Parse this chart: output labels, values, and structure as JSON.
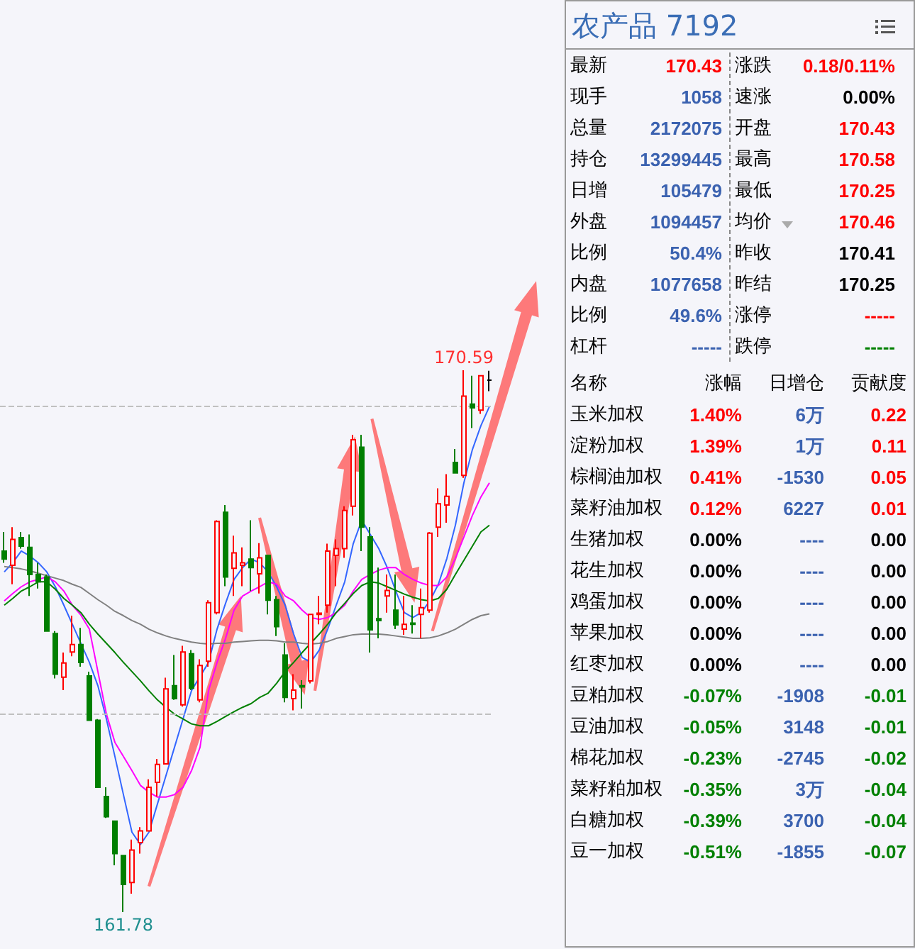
{
  "chart_data": [
    {
      "type": "candlestick",
      "categories": [
        null,
        null,
        null,
        null,
        null,
        null,
        null,
        null,
        null,
        null,
        null,
        null,
        null,
        null,
        null,
        null,
        null,
        null,
        null,
        null,
        null,
        null,
        null,
        null,
        null,
        null,
        null,
        null,
        null,
        null,
        null,
        null,
        null,
        null,
        null,
        null,
        null,
        null,
        null,
        null,
        null,
        null,
        null,
        null,
        null,
        null,
        null,
        null,
        null,
        null,
        null,
        null,
        null,
        null,
        null,
        null,
        null,
        null
      ],
      "ohlc": [
        [
          167.65,
          167.96,
          167.46,
          167.52
        ],
        [
          167.42,
          168.04,
          167.11,
          167.84
        ],
        [
          167.87,
          167.96,
          167.69,
          167.73
        ],
        [
          167.71,
          167.92,
          166.92,
          167.27
        ],
        [
          167.27,
          167.46,
          167.04,
          167.15
        ],
        [
          167.23,
          167.27,
          166.35,
          166.35
        ],
        [
          166.31,
          166.35,
          165.58,
          165.65
        ],
        [
          165.6,
          166.0,
          165.39,
          165.83
        ],
        [
          166.01,
          166.6,
          165.94,
          166.13
        ],
        [
          166.13,
          166.4,
          165.77,
          165.84
        ],
        [
          165.62,
          165.69,
          164.9,
          164.9
        ],
        [
          164.9,
          164.92,
          163.81,
          163.81
        ],
        [
          163.66,
          163.81,
          163.31,
          163.33
        ],
        [
          163.26,
          163.26,
          162.54,
          162.73
        ],
        [
          162.7,
          162.7,
          161.78,
          162.23
        ],
        [
          162.26,
          162.96,
          162.08,
          162.79
        ],
        [
          162.91,
          163.16,
          162.73,
          163.1
        ],
        [
          163.1,
          163.94,
          163.1,
          163.81
        ],
        [
          163.89,
          164.27,
          163.66,
          164.18
        ],
        [
          164.19,
          165.59,
          164.19,
          165.41
        ],
        [
          165.46,
          165.96,
          165.23,
          165.25
        ],
        [
          165.15,
          166.11,
          165.12,
          166.01
        ],
        [
          165.98,
          166.04,
          165.39,
          165.42
        ],
        [
          165.23,
          165.89,
          165.19,
          165.79
        ],
        [
          165.86,
          166.85,
          165.77,
          166.81
        ],
        [
          166.65,
          168.15,
          166.62,
          168.13
        ],
        [
          168.28,
          168.4,
          167.08,
          167.23
        ],
        [
          167.37,
          167.9,
          166.92,
          167.62
        ],
        [
          167.42,
          167.71,
          167.08,
          167.46
        ],
        [
          167.52,
          168.15,
          167.0,
          167.38
        ],
        [
          167.28,
          167.78,
          166.96,
          167.54
        ],
        [
          167.58,
          167.58,
          166.62,
          166.85
        ],
        [
          166.86,
          166.92,
          166.27,
          166.42
        ],
        [
          165.96,
          166.15,
          165.19,
          165.27
        ],
        [
          165.25,
          165.65,
          165.06,
          165.39
        ],
        [
          165.46,
          165.55,
          165.09,
          165.44
        ],
        [
          165.54,
          166.63,
          165.5,
          166.62
        ],
        [
          166.62,
          166.92,
          166.46,
          166.64
        ],
        [
          166.77,
          167.77,
          166.65,
          167.65
        ],
        [
          167.58,
          167.84,
          167.08,
          167.69
        ],
        [
          167.69,
          168.38,
          167.54,
          168.31
        ],
        [
          168.38,
          169.54,
          168.23,
          169.46
        ],
        [
          169.34,
          169.54,
          167.65,
          168.04
        ],
        [
          167.88,
          168.04,
          166.0,
          166.37
        ],
        [
          166.55,
          167.38,
          166.23,
          166.52
        ],
        [
          166.92,
          167.27,
          166.65,
          167.01
        ],
        [
          166.69,
          167.27,
          166.38,
          166.45
        ],
        [
          166.38,
          166.92,
          166.29,
          166.46
        ],
        [
          166.48,
          166.77,
          166.31,
          166.46
        ],
        [
          166.62,
          167.04,
          166.23,
          166.73
        ],
        [
          166.69,
          167.96,
          166.65,
          167.94
        ],
        [
          168.04,
          168.67,
          167.88,
          168.42
        ],
        [
          168.4,
          168.9,
          168.11,
          168.54
        ],
        [
          169.09,
          169.31,
          168.91,
          168.92
        ],
        [
          168.88,
          170.59,
          168.84,
          170.17
        ],
        [
          170.04,
          170.5,
          169.65,
          169.98
        ],
        [
          169.94,
          170.5,
          169.88,
          170.5
        ],
        [
          170.43,
          170.58,
          170.25,
          170.43
        ]
      ],
      "colors": [
        "#007f00",
        "#ff0000",
        "#007f00",
        "#007f00",
        "#007f00",
        "#007f00",
        "#007f00",
        "#ff0000",
        "#ff0000",
        "#007f00",
        "#007f00",
        "#007f00",
        "#007f00",
        "#007f00",
        "#007f00",
        "#ff0000",
        "#ff0000",
        "#ff0000",
        "#ff0000",
        "#ff0000",
        "#007f00",
        "#ff0000",
        "#007f00",
        "#ff0000",
        "#ff0000",
        "#ff0000",
        "#007f00",
        "#ff0000",
        "#ff0000",
        "#007f00",
        "#ff0000",
        "#007f00",
        "#007f00",
        "#007f00",
        "#ff0000",
        "#007f00",
        "#ff0000",
        "#ff0000",
        "#ff0000",
        "#ff0000",
        "#ff0000",
        "#ff0000",
        "#007f00",
        "#007f00",
        "#007f00",
        "#ff0000",
        "#007f00",
        "#ff0000",
        "#007f00",
        "#ff0000",
        "#ff0000",
        "#ff0000",
        "#ff0000",
        "#007f00",
        "#ff0000",
        "#007f00",
        "#ff0000",
        "#000000"
      ],
      "series": [
        {
          "type": "line",
          "color": "#3366ff",
          "values": [
            167.31,
            167.46,
            167.65,
            167.57,
            167.46,
            167.31,
            167.07,
            166.77,
            166.46,
            166.15,
            165.84,
            165.46,
            164.92,
            164.31,
            163.69,
            163.08,
            162.88,
            163.08,
            163.54,
            164.0,
            164.46,
            164.92,
            165.38,
            165.61,
            165.84,
            166.38,
            166.8,
            167.19,
            167.38,
            167.52,
            167.46,
            167.31,
            167.07,
            166.77,
            166.3,
            165.92,
            165.84,
            166.04,
            166.38,
            166.77,
            167.15,
            167.77,
            168.15,
            167.92,
            167.69,
            167.38,
            167.0,
            166.65,
            166.57,
            166.65,
            166.84,
            167.11,
            167.53,
            168.07,
            168.76,
            169.3,
            169.69,
            170.0
          ]
        },
        {
          "type": "line",
          "color": "#ff00ff",
          "values": [
            166.84,
            166.96,
            167.07,
            167.15,
            167.19,
            167.23,
            167.15,
            167.0,
            166.77,
            166.61,
            166.38,
            165.69,
            165.0,
            164.54,
            164.31,
            164.08,
            163.84,
            163.73,
            163.65,
            163.65,
            163.69,
            163.81,
            164.08,
            164.46,
            165.38,
            165.84,
            166.23,
            166.69,
            166.92,
            167.0,
            167.07,
            167.15,
            167.11,
            166.92,
            166.84,
            166.69,
            166.57,
            166.54,
            166.57,
            166.65,
            166.77,
            167.0,
            167.19,
            167.27,
            167.34,
            167.38,
            167.38,
            167.27,
            167.19,
            167.13,
            167.09,
            167.09,
            167.23,
            167.53,
            167.88,
            168.23,
            168.53,
            168.76
          ]
        },
        {
          "type": "line",
          "color": "#008000",
          "values": [
            166.77,
            166.88,
            167.0,
            167.07,
            167.15,
            167.15,
            167.03,
            166.88,
            166.77,
            166.65,
            166.46,
            166.3,
            166.15,
            166.0,
            165.84,
            165.69,
            165.54,
            165.38,
            165.23,
            165.11,
            165.0,
            164.92,
            164.84,
            164.81,
            164.81,
            164.88,
            164.96,
            165.04,
            165.11,
            165.17,
            165.27,
            165.34,
            165.5,
            165.69,
            165.84,
            166.0,
            166.15,
            166.3,
            166.46,
            166.65,
            166.8,
            166.96,
            167.09,
            167.15,
            167.13,
            167.07,
            167.01,
            166.95,
            166.9,
            166.86,
            166.84,
            166.88,
            167.03,
            167.27,
            167.5,
            167.73,
            167.96,
            168.07
          ]
        },
        {
          "type": "line",
          "color": "#808080",
          "values": [
            167.4,
            167.38,
            167.36,
            167.33,
            167.29,
            167.25,
            167.21,
            167.17,
            167.11,
            167.06,
            166.96,
            166.86,
            166.77,
            166.67,
            166.6,
            166.52,
            166.46,
            166.38,
            166.32,
            166.27,
            166.23,
            166.2,
            166.17,
            166.15,
            166.14,
            166.15,
            166.15,
            166.17,
            166.18,
            166.19,
            166.2,
            166.2,
            166.19,
            166.17,
            166.17,
            166.15,
            166.14,
            166.15,
            166.18,
            166.23,
            166.26,
            166.29,
            166.3,
            166.3,
            166.3,
            166.29,
            166.27,
            166.25,
            166.23,
            166.23,
            166.24,
            166.27,
            166.32,
            166.38,
            166.46,
            166.54,
            166.6,
            166.63
          ]
        }
      ],
      "ref_lines": [
        {
          "axis": "y",
          "value": 170,
          "color": "#c0c0c0",
          "line_style": "dashed"
        },
        {
          "axis": "y",
          "value": 165,
          "color": "#c0c0c0",
          "line_style": "dashed"
        }
      ],
      "annotations": [
        {
          "text": "170.59",
          "y": 170.59
        },
        {
          "text": "161.78",
          "y": 161.78
        }
      ],
      "tick_labels": false
    },
    {
      "type": "other",
      "title": "农产品 7192",
      "annotations": [
        "最新",
        "170.43",
        "涨跌",
        "0.18/0.11%",
        "现手",
        "1058",
        "速涨",
        "0.00%",
        "总量",
        "2172075",
        "开盘",
        "170.43",
        "持仓",
        "13299445",
        "最高",
        "170.58",
        "日增",
        "105479",
        "最低",
        "170.25",
        "外盘",
        "1094457",
        "均价",
        "170.46",
        "比例",
        "50.4%",
        "昨收",
        "170.41",
        "内盘",
        "1077658",
        "昨结",
        "170.25",
        "比例",
        "49.6%",
        "涨停",
        "-----",
        "杠杆",
        "-----",
        "跌停",
        "-----"
      ],
      "colors": [
        "#000000",
        "#ff0000",
        "#000000",
        "#ff0000",
        "#000000",
        "#3b62b0",
        "#000000",
        "#000000",
        "#000000",
        "#3b62b0",
        "#000000",
        "#ff0000",
        "#000000",
        "#3b62b0",
        "#000000",
        "#ff0000",
        "#000000",
        "#3b62b0",
        "#000000",
        "#ff0000",
        "#000000",
        "#3b62b0",
        "#000000",
        "#ff0000",
        "#000000",
        "#3b62b0",
        "#000000",
        "#000000",
        "#000000",
        "#3b62b0",
        "#000000",
        "#000000",
        "#000000",
        "#3b62b0",
        "#000000",
        "#ff0000",
        "#000000",
        "#3b62b0",
        "#000000",
        "#008000"
      ]
    },
    {
      "type": "other",
      "annotations": [
        "名称",
        "涨幅",
        "日增仓",
        "贡献度",
        "玉米加权",
        "1.40%",
        "6万",
        "0.22",
        "淀粉加权",
        "1.39%",
        "1万",
        "0.11",
        "棕榈油加权",
        "0.41%",
        "-1530",
        "0.05",
        "菜籽油加权",
        "0.12%",
        "6227",
        "0.01",
        "生猪加权",
        "0.00%",
        "----",
        "0.00",
        "花生加权",
        "0.00%",
        "----",
        "0.00",
        "鸡蛋加权",
        "0.00%",
        "----",
        "0.00",
        "苹果加权",
        "0.00%",
        "----",
        "0.00",
        "红枣加权",
        "0.00%",
        "----",
        "0.00",
        "豆粕加权",
        "-0.07%",
        "-1908",
        "-0.01",
        "豆油加权",
        "-0.05%",
        "3148",
        "-0.01",
        "棉花加权",
        "-0.23%",
        "-2745",
        "-0.02",
        "菜籽粕加权",
        "-0.35%",
        "3万",
        "-0.04",
        "白糖加权",
        "-0.39%",
        "3700",
        "-0.04",
        "豆一加权",
        "-0.51%",
        "-1855",
        "-0.07"
      ],
      "colors": [
        "#000000",
        "#000000",
        "#000000",
        "#000000",
        "#000000",
        "#ff0000",
        "#3b62b0",
        "#ff0000",
        "#000000",
        "#ff0000",
        "#3b62b0",
        "#ff0000",
        "#000000",
        "#ff0000",
        "#3b62b0",
        "#ff0000",
        "#000000",
        "#ff0000",
        "#3b62b0",
        "#ff0000",
        "#000000",
        "#000000",
        "#3b62b0",
        "#000000",
        "#000000",
        "#000000",
        "#3b62b0",
        "#000000",
        "#000000",
        "#000000",
        "#3b62b0",
        "#000000",
        "#000000",
        "#000000",
        "#3b62b0",
        "#000000",
        "#000000",
        "#000000",
        "#3b62b0",
        "#000000",
        "#000000",
        "#008000",
        "#3b62b0",
        "#008000",
        "#000000",
        "#008000",
        "#3b62b0",
        "#008000",
        "#000000",
        "#008000",
        "#3b62b0",
        "#008000",
        "#000000",
        "#008000",
        "#3b62b0",
        "#008000",
        "#000000",
        "#008000",
        "#3b62b0",
        "#008000",
        "#000000",
        "#008000",
        "#3b62b0",
        "#008000"
      ]
    }
  ]
}
